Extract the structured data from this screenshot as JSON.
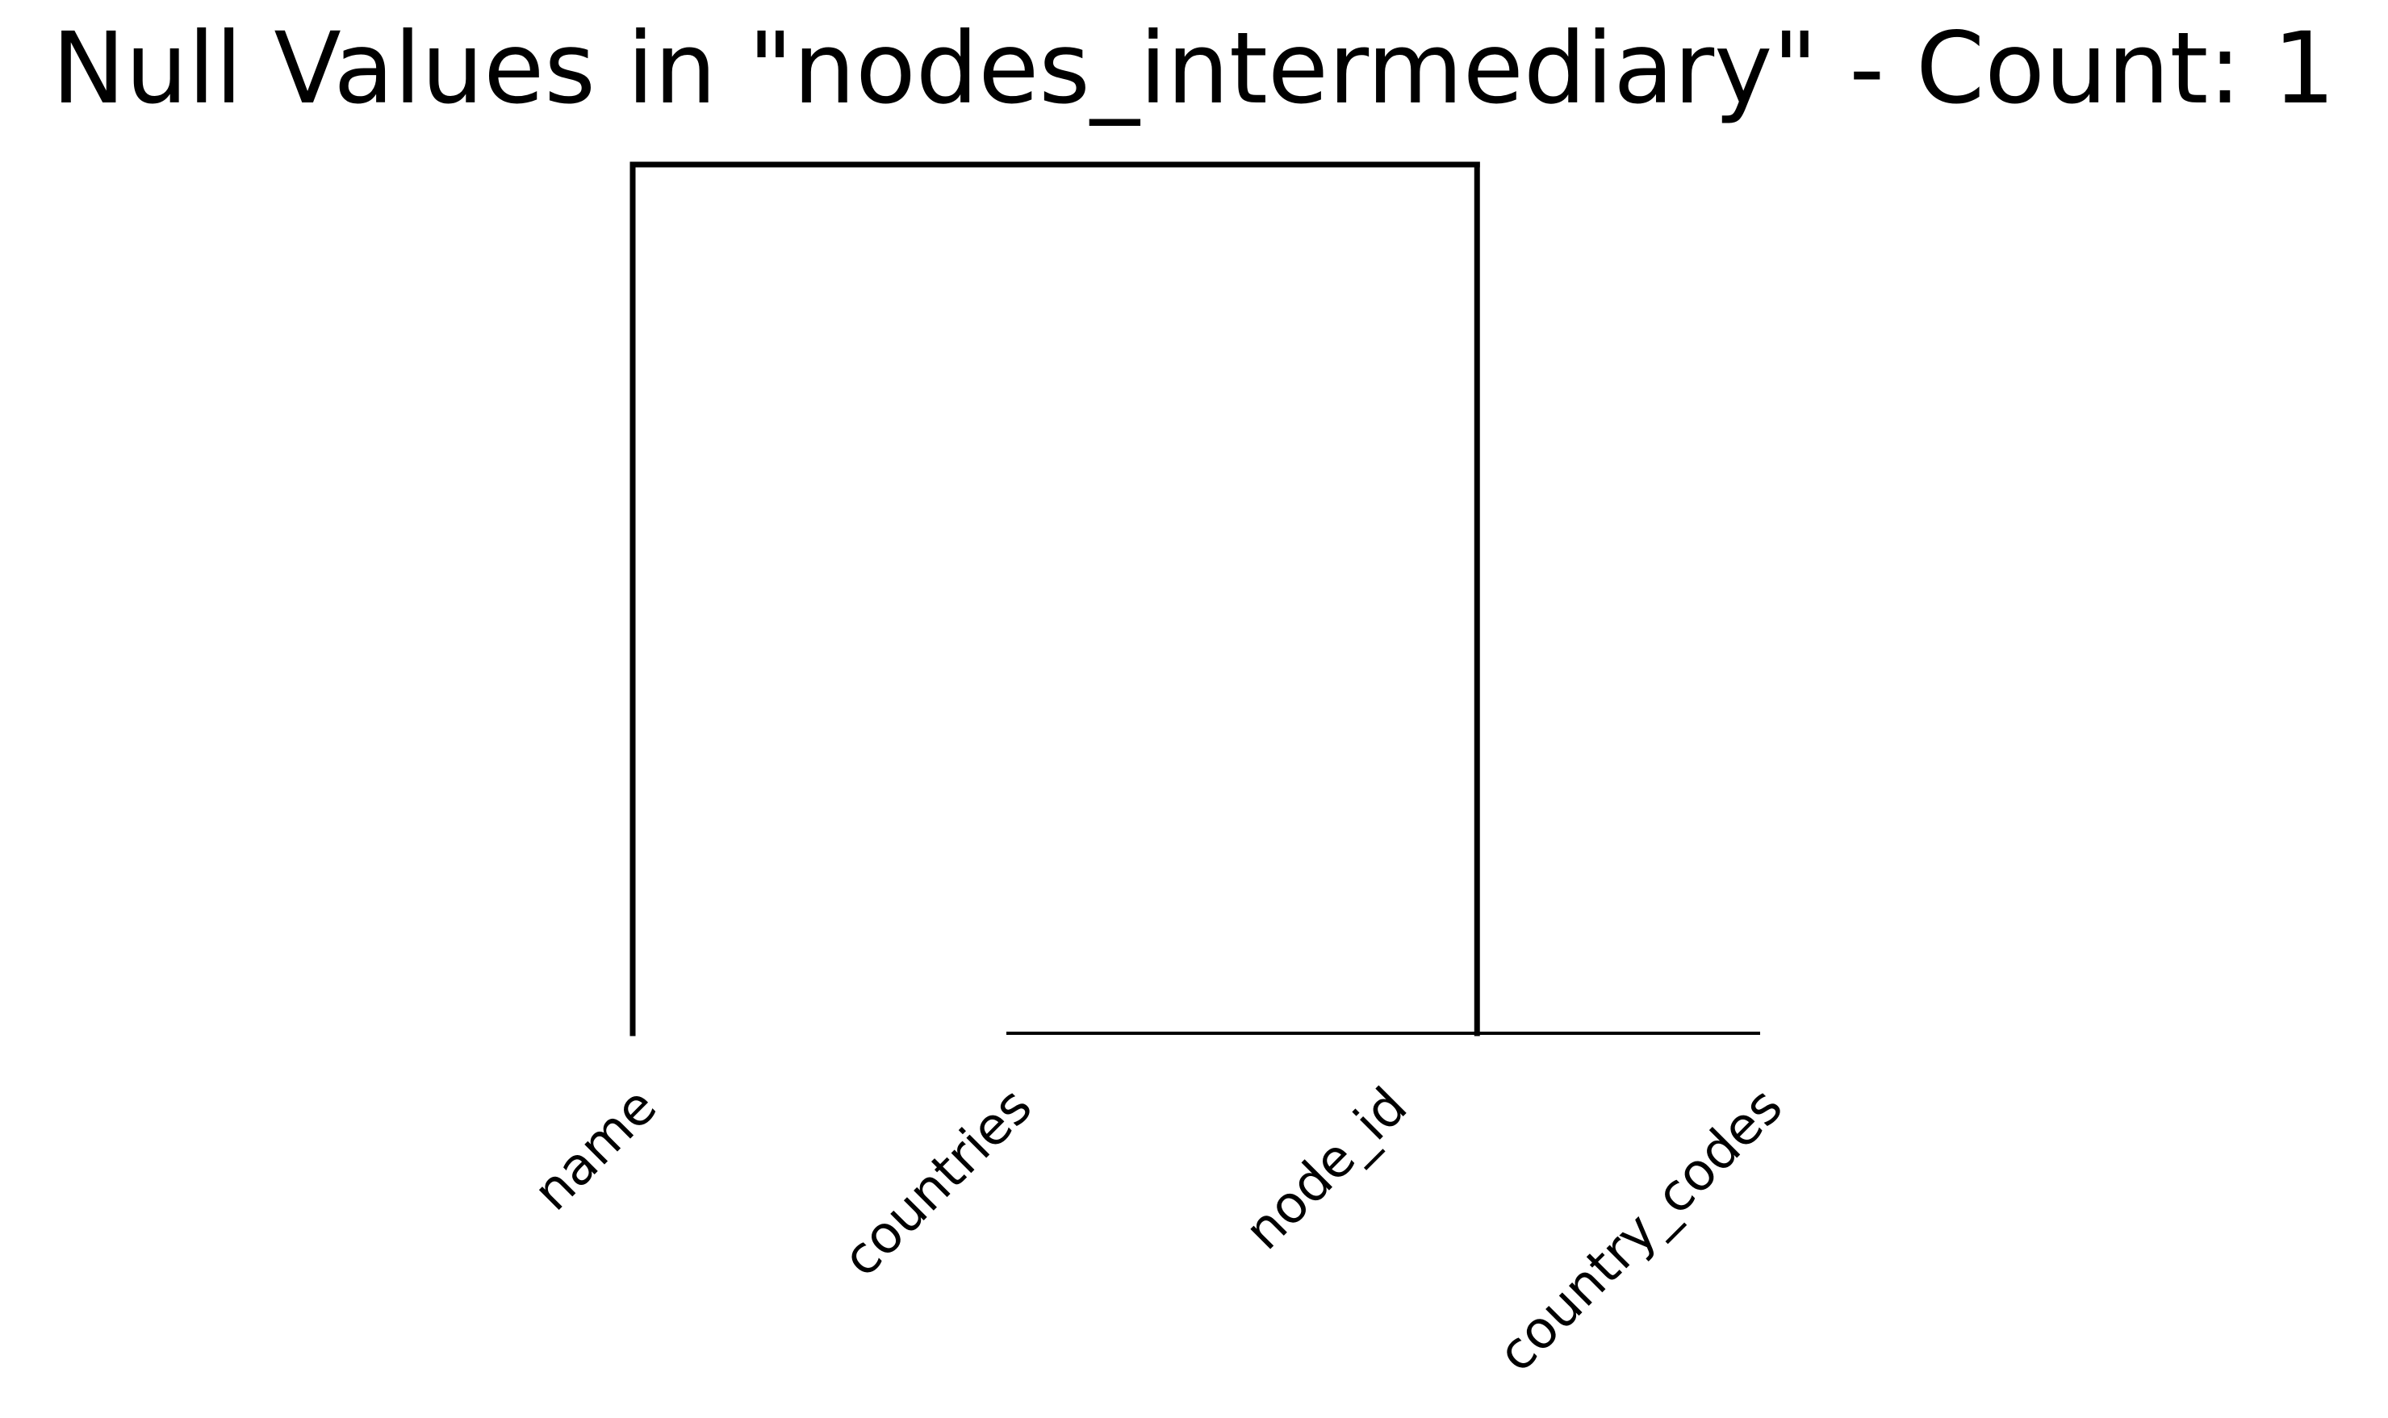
{
  "chart_data": {
    "type": "dendrogram",
    "title": "Null Values in \"nodes_intermediary\" - Count: 1",
    "leaves": [
      "name",
      "countries",
      "node_id",
      "country_codes"
    ],
    "merges": [
      {
        "left": "countries",
        "right": "node_id",
        "height": 0.0
      },
      {
        "left": "countries+node_id",
        "right": "country_codes",
        "height": 0.0
      },
      {
        "left": "name",
        "right": "countries+node_id+country_codes",
        "height": 1.0
      }
    ],
    "ylim": [
      0,
      1
    ],
    "grid": false,
    "axes_visible": false,
    "line_color": "#000000"
  }
}
